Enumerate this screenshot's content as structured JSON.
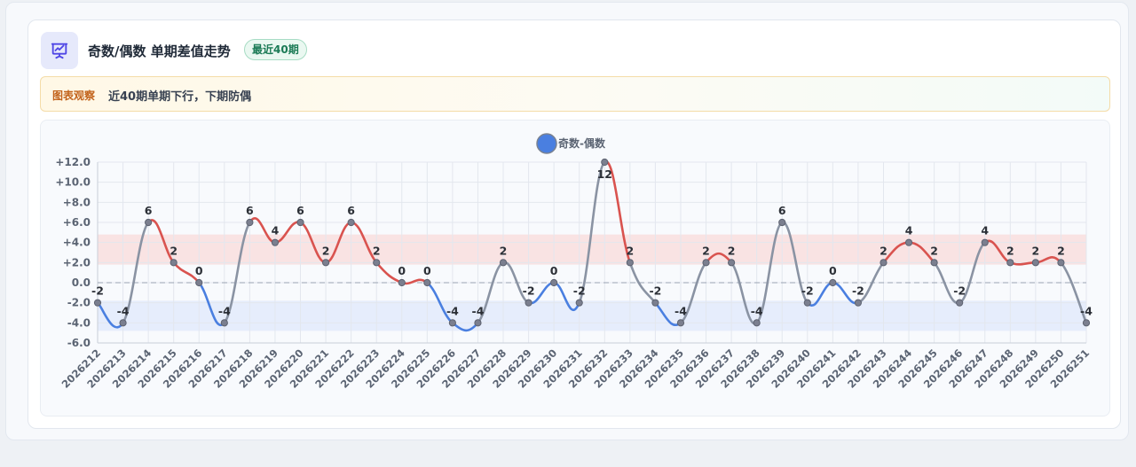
{
  "header": {
    "icon": "presentation-chart-icon",
    "title": "奇数/偶数 单期差值走势",
    "badge": "最近40期"
  },
  "observation": {
    "label": "图表观察",
    "text": "近40期单期下行，下期防偶"
  },
  "colors": {
    "up": "#d9534f",
    "down": "#4a7fe0",
    "neutral": "#8a93a3",
    "legend": "#4a7fe0"
  },
  "chart_data": {
    "type": "line",
    "legend": [
      "奇数-偶数"
    ],
    "series": [
      {
        "name": "奇数-偶数",
        "values": [
          -2,
          -4,
          6,
          2,
          0,
          -4,
          6,
          4,
          6,
          2,
          6,
          2,
          0,
          0,
          -4,
          -4,
          2,
          -2,
          0,
          -2,
          12,
          2,
          -2,
          -4,
          2,
          2,
          -4,
          6,
          -2,
          0,
          -2,
          2,
          4,
          2,
          -2,
          4,
          2,
          2,
          2,
          -4
        ]
      }
    ],
    "categories": [
      "2026212",
      "2026213",
      "2026214",
      "2026215",
      "2026216",
      "2026217",
      "2026218",
      "2026219",
      "2026220",
      "2026221",
      "2026222",
      "2026223",
      "2026224",
      "2026225",
      "2026226",
      "2026227",
      "2026228",
      "2026229",
      "2026230",
      "2026231",
      "2026232",
      "2026233",
      "2026234",
      "2026235",
      "2026236",
      "2026237",
      "2026238",
      "2026239",
      "2026240",
      "2026241",
      "2026242",
      "2026243",
      "2026244",
      "2026245",
      "2026246",
      "2026247",
      "2026248",
      "2026249",
      "2026250",
      "2026251"
    ],
    "yticks": [
      "+12.0",
      "+10.0",
      "+8.0",
      "+6.0",
      "+4.0",
      "+2.0",
      "0.0",
      "-2.0",
      "-4.0",
      "-6.0"
    ],
    "ylim": [
      -6,
      12
    ],
    "bands": [
      {
        "from": 1.8,
        "to": 4.8,
        "color": "#f9dede"
      },
      {
        "from": -4.8,
        "to": -1.8,
        "color": "#e3eafb"
      }
    ],
    "zero_line": true,
    "grid": true,
    "legend_position": "top-center"
  }
}
